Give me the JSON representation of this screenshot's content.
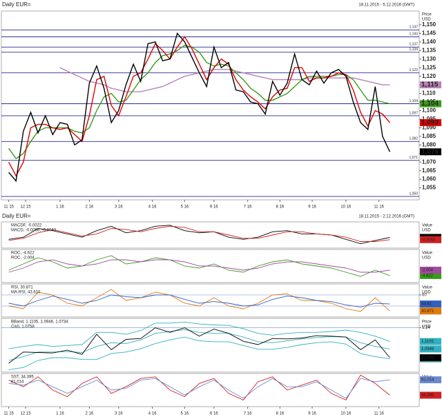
{
  "headers": {
    "top_title": "Daily EUR=",
    "top_range": "18.11.2015 - 5.12.2016 (GMT)",
    "bottom_title": "Daily EUR=",
    "bottom_range": "18.11.2015 - 2.12.2016 (GMT)"
  },
  "chart_data": [
    {
      "type": "line",
      "y_axis_title": "Price",
      "y_axis_unit": "USD",
      "xlim": [
        -1,
        56
      ],
      "ylim": [
        1.048,
        1.158
      ],
      "xticks": [
        {
          "value": 0,
          "label": "11 15"
        },
        {
          "value": 2.3,
          "label": "12 15"
        },
        {
          "value": 7,
          "label": "1 16"
        },
        {
          "value": 11,
          "label": "2 16"
        },
        {
          "value": 15,
          "label": "3 16"
        },
        {
          "value": 19.6,
          "label": "4 16"
        },
        {
          "value": 24,
          "label": "5 16"
        },
        {
          "value": 28,
          "label": "6 16"
        },
        {
          "value": 32.6,
          "label": "7 16"
        },
        {
          "value": 37,
          "label": "8 16"
        },
        {
          "value": 41.4,
          "label": "9 16"
        },
        {
          "value": 46,
          "label": "10 16"
        },
        {
          "value": 50.5,
          "label": "11 16"
        }
      ],
      "yticks": [
        {
          "value": 1.055,
          "label": "1,055"
        },
        {
          "value": 1.06,
          "label": "1,060"
        },
        {
          "value": 1.065,
          "label": "1,065"
        },
        {
          "value": 1.07,
          "label": "1,070"
        },
        {
          "value": 1.075,
          "label": "1,075"
        },
        {
          "value": 1.08,
          "label": "1,080"
        },
        {
          "value": 1.085,
          "label": "1,085"
        },
        {
          "value": 1.09,
          "label": "1,090"
        },
        {
          "value": 1.095,
          "label": "1,095"
        },
        {
          "value": 1.1,
          "label": "1,100"
        },
        {
          "value": 1.105,
          "label": "1,105"
        },
        {
          "value": 1.11,
          "label": "1,110"
        },
        {
          "value": 1.115,
          "label": "1,115"
        },
        {
          "value": 1.12,
          "label": "1,120"
        },
        {
          "value": 1.125,
          "label": "1,125"
        },
        {
          "value": 1.13,
          "label": "1,130"
        },
        {
          "value": 1.135,
          "label": "1,135"
        },
        {
          "value": 1.14,
          "label": "1,140"
        },
        {
          "value": 1.145,
          "label": "1,145"
        },
        {
          "value": 1.15,
          "label": "1,150"
        }
      ],
      "levels": [
        {
          "value": 1.147,
          "label": "1,147"
        },
        {
          "value": 1.143,
          "label": "1,143"
        },
        {
          "value": 1.137,
          "label": "1,137"
        },
        {
          "value": 1.134,
          "label": "1,134"
        },
        {
          "value": 1.122,
          "label": "1,122"
        },
        {
          "value": 1.104,
          "label": "1,104"
        },
        {
          "value": 1.097,
          "label": "1,097"
        },
        {
          "value": 1.082,
          "label": "1,082"
        },
        {
          "value": 1.071,
          "label": "1,071"
        },
        {
          "value": 1.05,
          "label": "1,050"
        }
      ],
      "series": [
        {
          "color": "#b783b7",
          "last_label": "1,115",
          "values": [
            null,
            null,
            null,
            null,
            null,
            null,
            null,
            1.125,
            1.123,
            1.121,
            1.119,
            1.117,
            1.116,
            1.115,
            1.113,
            1.112,
            1.111,
            1.111,
            1.111,
            1.112,
            1.113,
            1.114,
            1.116,
            1.118,
            1.12,
            1.121,
            1.122,
            1.123,
            1.124,
            1.124,
            1.124,
            1.123,
            1.122,
            1.121,
            1.12,
            1.119,
            1.118,
            1.118,
            1.118,
            1.118,
            1.118,
            1.119,
            1.119,
            1.119,
            1.119,
            1.119,
            1.119,
            1.119,
            1.118,
            1.117,
            1.116,
            1.115,
            1.115
          ]
        },
        {
          "color": "#3a9a1a",
          "last_label": "1,104",
          "values": [
            1.078,
            1.072,
            1.075,
            1.082,
            1.088,
            1.09,
            1.09,
            1.09,
            1.09,
            1.088,
            1.087,
            1.09,
            1.1,
            1.108,
            1.11,
            1.105,
            1.106,
            1.112,
            1.118,
            1.122,
            1.128,
            1.132,
            1.133,
            1.135,
            1.138,
            1.137,
            1.134,
            1.128,
            1.126,
            1.127,
            1.126,
            1.122,
            1.118,
            1.113,
            1.11,
            1.106,
            1.106,
            1.108,
            1.11,
            1.114,
            1.118,
            1.12,
            1.12,
            1.12,
            1.12,
            1.121,
            1.121,
            1.118,
            1.112,
            1.106,
            1.106,
            1.105,
            1.104
          ]
        },
        {
          "color": "#e00000",
          "last_label": "1,093",
          "values": [
            1.07,
            1.062,
            1.07,
            1.09,
            1.092,
            1.092,
            1.09,
            1.089,
            1.09,
            1.086,
            1.082,
            1.097,
            1.118,
            1.12,
            1.103,
            1.097,
            1.108,
            1.12,
            1.122,
            1.13,
            1.139,
            1.135,
            1.13,
            1.137,
            1.143,
            1.136,
            1.127,
            1.118,
            1.125,
            1.13,
            1.127,
            1.118,
            1.112,
            1.108,
            1.105,
            1.101,
            1.108,
            1.112,
            1.113,
            1.125,
            1.125,
            1.117,
            1.119,
            1.119,
            1.12,
            1.122,
            1.121,
            1.112,
            1.099,
            1.091,
            1.1,
            1.098,
            1.093
          ]
        },
        {
          "color": "#000000",
          "last_label": "1,076",
          "values": [
            1.064,
            1.059,
            1.088,
            1.099,
            1.087,
            1.097,
            1.086,
            1.093,
            1.092,
            1.08,
            1.083,
            1.116,
            1.126,
            1.113,
            1.093,
            1.1,
            1.115,
            1.127,
            1.117,
            1.139,
            1.14,
            1.129,
            1.13,
            1.145,
            1.14,
            1.131,
            1.122,
            1.114,
            1.137,
            1.125,
            1.128,
            1.112,
            1.111,
            1.105,
            1.104,
            1.098,
            1.117,
            1.109,
            1.116,
            1.133,
            1.118,
            1.115,
            1.123,
            1.116,
            1.122,
            1.124,
            1.12,
            1.105,
            1.093,
            1.089,
            1.114,
            1.085,
            1.076
          ]
        }
      ]
    },
    {
      "type": "line",
      "y_axis_title": "Value",
      "y_axis_unit": "USD",
      "xlim": [
        -0.5,
        28
      ],
      "ylim": [
        -0.012,
        0.012
      ],
      "series": [
        {
          "name": "MACDF, -0.0022",
          "color": "#000000",
          "values": [
            -0.004,
            -0.002,
            0.006,
            0.004,
            0.001,
            -0.002,
            0.004,
            0.008,
            0.002,
            0.004,
            0.008,
            0.009,
            0.004,
            0.002,
            0.003,
            -0.002,
            -0.004,
            -0.002,
            0.003,
            0.004,
            0.001,
            0.001,
            0.0,
            -0.004,
            -0.008,
            -0.005,
            -0.0022
          ]
        },
        {
          "name": "MACD, -0.0068, -0.0043",
          "color": "#d02020",
          "values": [
            -0.005,
            -0.003,
            0.002,
            0.005,
            0.002,
            -0.001,
            0.001,
            0.006,
            0.005,
            0.003,
            0.006,
            0.008,
            0.007,
            0.003,
            0.003,
            0.0,
            -0.003,
            -0.003,
            0.0,
            0.003,
            0.003,
            0.001,
            0.0,
            -0.002,
            -0.006,
            -0.006,
            -0.0043
          ]
        }
      ]
    },
    {
      "type": "line",
      "y_axis_title": "Value",
      "y_axis_unit": "USD",
      "xlim": [
        -0.5,
        28
      ],
      "ylim": [
        -8,
        8
      ],
      "series": [
        {
          "name": "ROC, -4.622",
          "color": "#3a9a1a",
          "values": [
            -2,
            1,
            4,
            2,
            -1,
            0,
            3,
            5,
            1,
            2,
            4,
            3,
            0,
            -1,
            1,
            -2,
            -3,
            0,
            2,
            3,
            1,
            0,
            -1,
            -3,
            -5,
            -2,
            -4.622
          ]
        },
        {
          "name": "ROC, -2.004",
          "color": "#a04aa0",
          "values": [
            -3,
            -1,
            2,
            3,
            1,
            0,
            1,
            3,
            3,
            2,
            3,
            3,
            2,
            0,
            0,
            -1,
            -2,
            -1,
            1,
            2,
            2,
            1,
            0,
            -1,
            -3,
            -3,
            -2.004
          ]
        }
      ]
    },
    {
      "type": "line",
      "y_axis_title": "Value",
      "y_axis_unit": "USD",
      "xlim": [
        -0.5,
        28
      ],
      "ylim": [
        20,
        80
      ],
      "yticks": [
        40,
        60
      ],
      "series": [
        {
          "name": "RSI, 30.871",
          "color": "#e07a10",
          "values": [
            40,
            35,
            65,
            60,
            45,
            40,
            55,
            70,
            50,
            55,
            65,
            60,
            45,
            40,
            55,
            40,
            35,
            45,
            60,
            62,
            50,
            50,
            45,
            35,
            30,
            55,
            30.871
          ]
        },
        {
          "name": "MA.RSI, 43.610",
          "color": "#3060c0",
          "values": [
            45,
            40,
            50,
            58,
            52,
            45,
            50,
            60,
            57,
            55,
            60,
            60,
            52,
            45,
            48,
            45,
            40,
            42,
            52,
            58,
            55,
            50,
            48,
            42,
            38,
            45,
            43.61
          ]
        }
      ]
    },
    {
      "type": "line",
      "y_axis_title": "Price",
      "y_axis_unit": "USD",
      "xlim": [
        -0.5,
        28
      ],
      "ylim": [
        1.045,
        1.16
      ],
      "yticks": [
        {
          "value": 1.14,
          "label": "1,14"
        }
      ],
      "series": [
        {
          "name": "BBand, 1.1105, 1.0946, 1.0734",
          "color": "#30b0c0",
          "last_label": "1,1105",
          "values": [
            1.095,
            1.1,
            1.104,
            1.1,
            1.102,
            1.104,
            1.13,
            1.13,
            1.126,
            1.134,
            1.15,
            1.15,
            1.152,
            1.148,
            1.146,
            1.145,
            1.138,
            1.128,
            1.124,
            1.128,
            1.13,
            1.13,
            1.132,
            1.135,
            1.13,
            1.122,
            1.1105
          ]
        },
        {
          "color": "#30b0c0",
          "last_label": "1,0946",
          "values": [
            1.07,
            1.078,
            1.088,
            1.088,
            1.089,
            1.087,
            1.1,
            1.108,
            1.106,
            1.114,
            1.128,
            1.132,
            1.136,
            1.13,
            1.128,
            1.128,
            1.12,
            1.11,
            1.108,
            1.112,
            1.116,
            1.119,
            1.121,
            1.12,
            1.108,
            1.1,
            1.0946
          ]
        },
        {
          "color": "#30b0c0",
          "last_label": "1,0734",
          "values": [
            1.05,
            1.055,
            1.07,
            1.076,
            1.076,
            1.072,
            1.072,
            1.085,
            1.088,
            1.095,
            1.106,
            1.114,
            1.12,
            1.112,
            1.11,
            1.11,
            1.102,
            1.094,
            1.094,
            1.098,
            1.104,
            1.108,
            1.11,
            1.105,
            1.085,
            1.078,
            1.0734
          ]
        },
        {
          "name": "Cls0, 1.0758",
          "color": "#000000",
          "last_label": "1,0758",
          "values": [
            1.064,
            1.088,
            1.087,
            1.086,
            1.092,
            1.083,
            1.126,
            1.093,
            1.115,
            1.117,
            1.14,
            1.13,
            1.14,
            1.122,
            1.137,
            1.128,
            1.111,
            1.104,
            1.117,
            1.116,
            1.118,
            1.123,
            1.122,
            1.12,
            1.093,
            1.114,
            1.0758
          ]
        }
      ]
    },
    {
      "type": "line",
      "y_axis_title": "Value",
      "y_axis_unit": "USD",
      "xlim": [
        -0.5,
        28
      ],
      "ylim": [
        0,
        100
      ],
      "series": [
        {
          "name": "SST, 34.395",
          "color": "#d02020",
          "last_label": "34,395",
          "values": [
            80,
            60,
            90,
            50,
            30,
            70,
            90,
            40,
            60,
            85,
            90,
            50,
            30,
            70,
            85,
            40,
            20,
            75,
            90,
            50,
            65,
            80,
            40,
            20,
            95,
            70,
            34.395
          ]
        },
        {
          "name": "81.014",
          "color": "#6a8ad0",
          "last_label": "81,014",
          "values": [
            70,
            65,
            80,
            60,
            40,
            60,
            80,
            50,
            55,
            80,
            85,
            60,
            35,
            60,
            80,
            50,
            25,
            60,
            85,
            60,
            60,
            75,
            50,
            25,
            85,
            75,
            81.014
          ]
        }
      ]
    }
  ]
}
